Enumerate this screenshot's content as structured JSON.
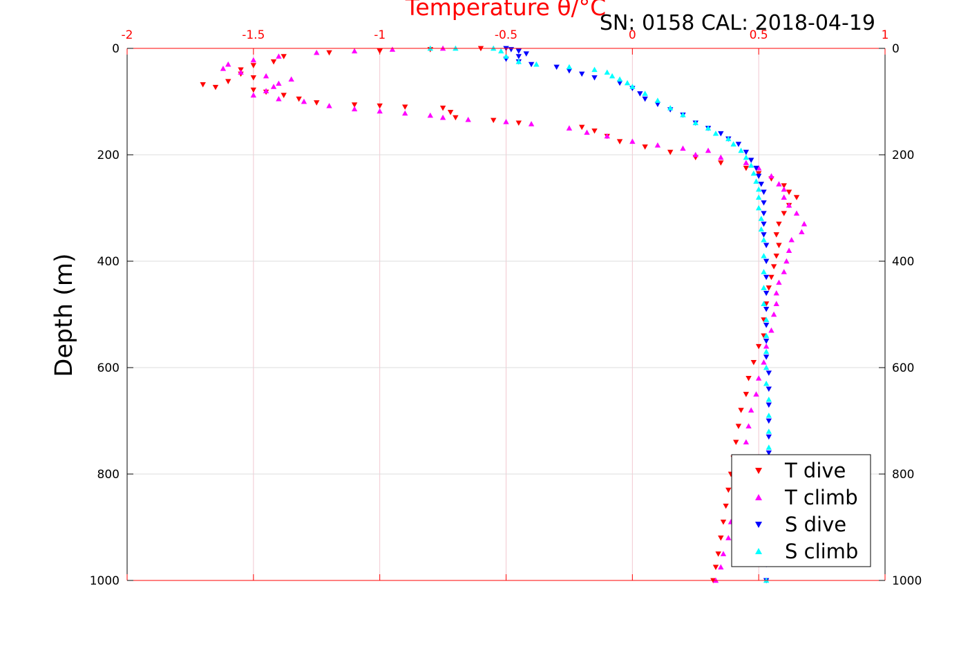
{
  "chart_data": {
    "type": "scatter",
    "title": "Temperature θ/°C",
    "annotation": "SN: 0158  CAL: 2018-04-19",
    "xlabel": "Temperature θ/°C",
    "ylabel": "Depth (m)",
    "xlim": [
      -2,
      1
    ],
    "ylim": [
      1000,
      0
    ],
    "y_reversed": true,
    "xticks": [
      "-2",
      "-1.5",
      "-1",
      "-0.5",
      "0",
      "0.5",
      "1"
    ],
    "yticks": [
      "0",
      "200",
      "400",
      "600",
      "800",
      "1000"
    ],
    "grid": true,
    "legend_position": "bottom-right",
    "colors": {
      "T dive": "#ff0000",
      "T climb": "#ff00ff",
      "S dive": "#0000ff",
      "S climb": "#00ffff",
      "axis_top": "#ff0000"
    },
    "series": [
      {
        "name": "T dive",
        "marker": "triangle-down",
        "color": "#ff0000",
        "points": [
          [
            -0.6,
            0
          ],
          [
            -0.8,
            2
          ],
          [
            -1.0,
            5
          ],
          [
            -1.2,
            8
          ],
          [
            -1.38,
            15
          ],
          [
            -1.42,
            25
          ],
          [
            -1.5,
            32
          ],
          [
            -1.55,
            40
          ],
          [
            -1.55,
            48
          ],
          [
            -1.5,
            55
          ],
          [
            -1.6,
            62
          ],
          [
            -1.7,
            68
          ],
          [
            -1.65,
            73
          ],
          [
            -1.5,
            78
          ],
          [
            -1.45,
            82
          ],
          [
            -1.38,
            88
          ],
          [
            -1.32,
            95
          ],
          [
            -1.25,
            102
          ],
          [
            -1.1,
            106
          ],
          [
            -1.0,
            108
          ],
          [
            -0.9,
            110
          ],
          [
            -0.75,
            112
          ],
          [
            -0.72,
            120
          ],
          [
            -0.7,
            130
          ],
          [
            -0.55,
            135
          ],
          [
            -0.45,
            140
          ],
          [
            -0.2,
            148
          ],
          [
            -0.15,
            155
          ],
          [
            -0.1,
            165
          ],
          [
            -0.05,
            175
          ],
          [
            0.05,
            185
          ],
          [
            0.15,
            195
          ],
          [
            0.25,
            205
          ],
          [
            0.35,
            215
          ],
          [
            0.45,
            225
          ],
          [
            0.5,
            235
          ],
          [
            0.55,
            245
          ],
          [
            0.6,
            258
          ],
          [
            0.62,
            270
          ],
          [
            0.65,
            280
          ],
          [
            0.62,
            295
          ],
          [
            0.6,
            310
          ],
          [
            0.58,
            330
          ],
          [
            0.57,
            350
          ],
          [
            0.58,
            370
          ],
          [
            0.57,
            390
          ],
          [
            0.56,
            410
          ],
          [
            0.55,
            430
          ],
          [
            0.54,
            450
          ],
          [
            0.53,
            480
          ],
          [
            0.52,
            510
          ],
          [
            0.52,
            540
          ],
          [
            0.5,
            560
          ],
          [
            0.48,
            590
          ],
          [
            0.46,
            620
          ],
          [
            0.45,
            650
          ],
          [
            0.43,
            680
          ],
          [
            0.42,
            710
          ],
          [
            0.41,
            740
          ],
          [
            0.4,
            770
          ],
          [
            0.39,
            800
          ],
          [
            0.38,
            830
          ],
          [
            0.37,
            860
          ],
          [
            0.36,
            890
          ],
          [
            0.35,
            920
          ],
          [
            0.34,
            950
          ],
          [
            0.33,
            975
          ],
          [
            0.32,
            1000
          ]
        ]
      },
      {
        "name": "T climb",
        "marker": "triangle-up",
        "color": "#ff00ff",
        "points": [
          [
            -0.75,
            0
          ],
          [
            -0.95,
            2
          ],
          [
            -1.1,
            5
          ],
          [
            -1.25,
            8
          ],
          [
            -1.4,
            15
          ],
          [
            -1.5,
            22
          ],
          [
            -1.6,
            30
          ],
          [
            -1.62,
            38
          ],
          [
            -1.55,
            45
          ],
          [
            -1.45,
            52
          ],
          [
            -1.35,
            58
          ],
          [
            -1.4,
            66
          ],
          [
            -1.42,
            72
          ],
          [
            -1.45,
            80
          ],
          [
            -1.5,
            88
          ],
          [
            -1.4,
            95
          ],
          [
            -1.3,
            100
          ],
          [
            -1.2,
            108
          ],
          [
            -1.1,
            114
          ],
          [
            -1.0,
            118
          ],
          [
            -0.9,
            122
          ],
          [
            -0.8,
            126
          ],
          [
            -0.75,
            130
          ],
          [
            -0.65,
            134
          ],
          [
            -0.5,
            138
          ],
          [
            -0.4,
            142
          ],
          [
            -0.25,
            150
          ],
          [
            -0.18,
            158
          ],
          [
            -0.1,
            165
          ],
          [
            0.0,
            175
          ],
          [
            0.1,
            182
          ],
          [
            0.2,
            188
          ],
          [
            0.3,
            192
          ],
          [
            0.25,
            200
          ],
          [
            0.35,
            205
          ],
          [
            0.45,
            215
          ],
          [
            0.5,
            225
          ],
          [
            0.55,
            240
          ],
          [
            0.58,
            255
          ],
          [
            0.6,
            265
          ],
          [
            0.6,
            280
          ],
          [
            0.62,
            295
          ],
          [
            0.65,
            310
          ],
          [
            0.68,
            330
          ],
          [
            0.67,
            345
          ],
          [
            0.63,
            360
          ],
          [
            0.62,
            380
          ],
          [
            0.61,
            400
          ],
          [
            0.6,
            420
          ],
          [
            0.58,
            440
          ],
          [
            0.57,
            460
          ],
          [
            0.57,
            480
          ],
          [
            0.56,
            500
          ],
          [
            0.55,
            530
          ],
          [
            0.53,
            560
          ],
          [
            0.52,
            590
          ],
          [
            0.5,
            620
          ],
          [
            0.49,
            650
          ],
          [
            0.47,
            680
          ],
          [
            0.46,
            710
          ],
          [
            0.45,
            740
          ],
          [
            0.44,
            770
          ],
          [
            0.43,
            800
          ],
          [
            0.42,
            830
          ],
          [
            0.41,
            860
          ],
          [
            0.39,
            890
          ],
          [
            0.38,
            920
          ],
          [
            0.36,
            950
          ],
          [
            0.35,
            975
          ],
          [
            0.33,
            1000
          ]
        ]
      },
      {
        "name": "S dive",
        "marker": "triangle-down",
        "color": "#0000ff",
        "points": [
          [
            -0.5,
            0
          ],
          [
            -0.48,
            2
          ],
          [
            -0.45,
            5
          ],
          [
            -0.42,
            10
          ],
          [
            -0.45,
            15
          ],
          [
            -0.5,
            20
          ],
          [
            -0.45,
            25
          ],
          [
            -0.4,
            30
          ],
          [
            -0.3,
            35
          ],
          [
            -0.25,
            42
          ],
          [
            -0.2,
            48
          ],
          [
            -0.15,
            55
          ],
          [
            -0.05,
            65
          ],
          [
            0.0,
            75
          ],
          [
            0.03,
            85
          ],
          [
            0.05,
            95
          ],
          [
            0.1,
            105
          ],
          [
            0.15,
            115
          ],
          [
            0.2,
            125
          ],
          [
            0.25,
            140
          ],
          [
            0.3,
            150
          ],
          [
            0.35,
            160
          ],
          [
            0.38,
            170
          ],
          [
            0.42,
            180
          ],
          [
            0.45,
            195
          ],
          [
            0.47,
            210
          ],
          [
            0.49,
            225
          ],
          [
            0.5,
            240
          ],
          [
            0.51,
            255
          ],
          [
            0.52,
            270
          ],
          [
            0.52,
            290
          ],
          [
            0.52,
            310
          ],
          [
            0.52,
            330
          ],
          [
            0.52,
            350
          ],
          [
            0.53,
            370
          ],
          [
            0.53,
            400
          ],
          [
            0.53,
            430
          ],
          [
            0.53,
            460
          ],
          [
            0.53,
            490
          ],
          [
            0.53,
            520
          ],
          [
            0.53,
            550
          ],
          [
            0.53,
            580
          ],
          [
            0.54,
            610
          ],
          [
            0.54,
            640
          ],
          [
            0.54,
            670
          ],
          [
            0.54,
            700
          ],
          [
            0.54,
            730
          ],
          [
            0.54,
            760
          ],
          [
            0.54,
            790
          ],
          [
            0.53,
            820
          ],
          [
            0.53,
            850
          ],
          [
            0.53,
            880
          ],
          [
            0.53,
            910
          ],
          [
            0.53,
            940
          ],
          [
            0.53,
            970
          ],
          [
            0.53,
            1000
          ]
        ]
      },
      {
        "name": "S climb",
        "marker": "triangle-up",
        "color": "#00ffff",
        "points": [
          [
            -0.8,
            0
          ],
          [
            -0.7,
            0
          ],
          [
            -0.55,
            0
          ],
          [
            -0.52,
            5
          ],
          [
            -0.5,
            15
          ],
          [
            -0.45,
            25
          ],
          [
            -0.38,
            30
          ],
          [
            -0.25,
            35
          ],
          [
            -0.15,
            40
          ],
          [
            -0.1,
            45
          ],
          [
            -0.08,
            52
          ],
          [
            -0.05,
            58
          ],
          [
            -0.02,
            65
          ],
          [
            0.0,
            72
          ],
          [
            0.05,
            85
          ],
          [
            0.1,
            98
          ],
          [
            0.15,
            112
          ],
          [
            0.2,
            125
          ],
          [
            0.25,
            140
          ],
          [
            0.3,
            150
          ],
          [
            0.33,
            160
          ],
          [
            0.38,
            170
          ],
          [
            0.4,
            180
          ],
          [
            0.43,
            192
          ],
          [
            0.45,
            205
          ],
          [
            0.47,
            220
          ],
          [
            0.48,
            235
          ],
          [
            0.49,
            250
          ],
          [
            0.5,
            265
          ],
          [
            0.5,
            280
          ],
          [
            0.5,
            300
          ],
          [
            0.51,
            320
          ],
          [
            0.51,
            340
          ],
          [
            0.52,
            360
          ],
          [
            0.52,
            390
          ],
          [
            0.52,
            420
          ],
          [
            0.52,
            450
          ],
          [
            0.52,
            480
          ],
          [
            0.53,
            510
          ],
          [
            0.53,
            540
          ],
          [
            0.53,
            570
          ],
          [
            0.53,
            600
          ],
          [
            0.53,
            630
          ],
          [
            0.54,
            660
          ],
          [
            0.54,
            690
          ],
          [
            0.54,
            720
          ],
          [
            0.54,
            750
          ],
          [
            0.54,
            780
          ],
          [
            0.53,
            810
          ],
          [
            0.53,
            840
          ],
          [
            0.53,
            870
          ],
          [
            0.53,
            900
          ],
          [
            0.53,
            930
          ],
          [
            0.53,
            960
          ],
          [
            0.53,
            1000
          ]
        ]
      }
    ]
  }
}
